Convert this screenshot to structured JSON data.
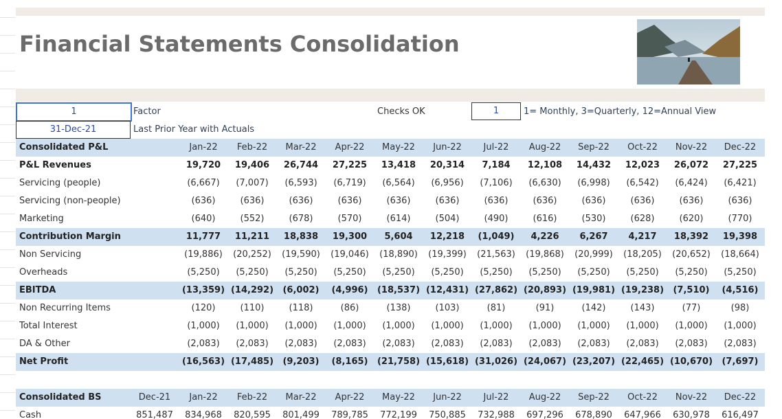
{
  "header": {
    "title": "Financial Statements Consolidation"
  },
  "inputs": {
    "factor_value": "1",
    "factor_label": "Factor",
    "checks": "Checks OK",
    "view_value": "1",
    "view_label": "1= Monthly, 3=Quarterly, 12=Annual View",
    "date_value": "31-Dec-21",
    "date_label": "Last Prior Year with Actuals"
  },
  "pl": {
    "title": "Consolidated P&L",
    "columns": [
      "Jan-22",
      "Feb-22",
      "Mar-22",
      "Apr-22",
      "May-22",
      "Jun-22",
      "Jul-22",
      "Aug-22",
      "Sep-22",
      "Oct-22",
      "Nov-22",
      "Dec-22"
    ],
    "rows": [
      {
        "label": "P&L Revenues",
        "values": [
          "19,720",
          "19,406",
          "26,744",
          "27,225",
          "13,418",
          "20,314",
          "7,184",
          "12,108",
          "14,432",
          "12,023",
          "26,072",
          "27,225"
        ]
      },
      {
        "label": "Servicing (people)",
        "values": [
          "(6,667)",
          "(7,007)",
          "(6,593)",
          "(6,719)",
          "(6,564)",
          "(6,956)",
          "(7,106)",
          "(6,630)",
          "(6,998)",
          "(6,542)",
          "(6,424)",
          "(6,421)"
        ]
      },
      {
        "label": "Servicing (non-people)",
        "values": [
          "(636)",
          "(636)",
          "(636)",
          "(636)",
          "(636)",
          "(636)",
          "(636)",
          "(636)",
          "(636)",
          "(636)",
          "(636)",
          "(636)"
        ]
      },
      {
        "label": "Marketing",
        "values": [
          "(640)",
          "(552)",
          "(678)",
          "(570)",
          "(614)",
          "(504)",
          "(490)",
          "(616)",
          "(530)",
          "(628)",
          "(620)",
          "(770)"
        ]
      },
      {
        "label": "Contribution Margin",
        "values": [
          "11,777",
          "11,211",
          "18,838",
          "19,300",
          "5,604",
          "12,218",
          "(1,049)",
          "4,226",
          "6,267",
          "4,217",
          "18,392",
          "19,398"
        ]
      },
      {
        "label": "Non Servicing",
        "values": [
          "(19,886)",
          "(20,252)",
          "(19,590)",
          "(19,046)",
          "(18,890)",
          "(19,399)",
          "(21,563)",
          "(19,868)",
          "(20,999)",
          "(18,205)",
          "(20,652)",
          "(18,664)"
        ]
      },
      {
        "label": "Overheads",
        "values": [
          "(5,250)",
          "(5,250)",
          "(5,250)",
          "(5,250)",
          "(5,250)",
          "(5,250)",
          "(5,250)",
          "(5,250)",
          "(5,250)",
          "(5,250)",
          "(5,250)",
          "(5,250)"
        ]
      },
      {
        "label": "EBITDA",
        "values": [
          "(13,359)",
          "(14,292)",
          "(6,002)",
          "(4,996)",
          "(18,537)",
          "(12,431)",
          "(27,862)",
          "(20,893)",
          "(19,981)",
          "(19,238)",
          "(7,510)",
          "(4,516)"
        ]
      },
      {
        "label": "Non Recurring Items",
        "values": [
          "(120)",
          "(110)",
          "(118)",
          "(86)",
          "(138)",
          "(103)",
          "(81)",
          "(91)",
          "(142)",
          "(143)",
          "(77)",
          "(98)"
        ]
      },
      {
        "label": "Total Interest",
        "values": [
          "(1,000)",
          "(1,000)",
          "(1,000)",
          "(1,000)",
          "(1,000)",
          "(1,000)",
          "(1,000)",
          "(1,000)",
          "(1,000)",
          "(1,000)",
          "(1,000)",
          "(1,000)"
        ]
      },
      {
        "label": "DA & Other",
        "values": [
          "(2,083)",
          "(2,083)",
          "(2,083)",
          "(2,083)",
          "(2,083)",
          "(2,083)",
          "(2,083)",
          "(2,083)",
          "(2,083)",
          "(2,083)",
          "(2,083)",
          "(2,083)"
        ]
      },
      {
        "label": "Net Profit",
        "values": [
          "(16,563)",
          "(17,485)",
          "(9,203)",
          "(8,165)",
          "(21,758)",
          "(15,618)",
          "(31,026)",
          "(24,067)",
          "(23,207)",
          "(22,465)",
          "(10,670)",
          "(7,697)"
        ]
      }
    ]
  },
  "bs": {
    "title": "Consolidated BS",
    "columns": [
      "Dec-21",
      "Jan-22",
      "Feb-22",
      "Mar-22",
      "Apr-22",
      "May-22",
      "Jun-22",
      "Jul-22",
      "Aug-22",
      "Sep-22",
      "Oct-22",
      "Nov-22",
      "Dec-22"
    ],
    "rows": [
      {
        "label": "Cash",
        "values": [
          "851,487",
          "834,968",
          "820,595",
          "801,499",
          "789,785",
          "772,199",
          "750,885",
          "732,988",
          "697,296",
          "678,890",
          "647,966",
          "630,978",
          "616,497"
        ]
      }
    ]
  }
}
